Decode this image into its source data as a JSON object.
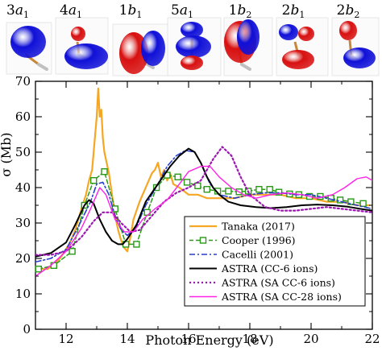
{
  "orbitals": [
    {
      "label": "3a",
      "sub": "1"
    },
    {
      "label": "4a",
      "sub": "1"
    },
    {
      "label": "1b",
      "sub": "1"
    },
    {
      "label": "5a",
      "sub": "1"
    },
    {
      "label": "1b",
      "sub": "2"
    },
    {
      "label": "2b",
      "sub": "1"
    },
    {
      "label": "2b",
      "sub": "2"
    }
  ],
  "orbital_colors": {
    "positive": "#1010d8",
    "negative": "#d81010",
    "bond": "#c8883a",
    "atom": "#c0c0c0"
  },
  "chart_data": {
    "type": "line",
    "xlabel": "Photon Energy (eV)",
    "ylabel": "σ (Mb)",
    "xlim": [
      11,
      22
    ],
    "ylim": [
      0,
      70
    ],
    "xticks": [
      12,
      14,
      16,
      18,
      20,
      22
    ],
    "yticks": [
      0,
      10,
      20,
      30,
      40,
      50,
      60,
      70
    ],
    "grid": false,
    "legend_position": "lower-center",
    "series": [
      {
        "name": "Tanaka (2017)",
        "color": "#f5a623",
        "style": "solid",
        "width": 2.2,
        "x": [
          11.0,
          11.4,
          11.8,
          12.1,
          12.3,
          12.5,
          12.65,
          12.75,
          12.85,
          12.95,
          13.0,
          13.05,
          13.1,
          13.15,
          13.2,
          13.25,
          13.3,
          13.4,
          13.5,
          13.6,
          13.7,
          13.8,
          13.9,
          14.0,
          14.1,
          14.2,
          14.4,
          14.6,
          14.8,
          14.9,
          15.0,
          15.1,
          15.2,
          15.3,
          15.4,
          15.5,
          15.7,
          16.0,
          16.3,
          16.6,
          17.0,
          17.5,
          18.0,
          18.5,
          19.0,
          19.5,
          20.0,
          20.5,
          21.0,
          21.5,
          21.9
        ],
        "y": [
          17,
          17,
          20,
          24,
          28,
          34,
          38,
          42,
          45,
          55,
          60,
          68,
          60,
          62,
          54,
          50,
          48,
          44,
          38,
          32,
          28,
          25,
          23,
          22,
          26,
          31,
          36,
          40,
          44,
          45,
          47,
          43,
          45,
          42,
          44,
          41,
          40,
          38,
          38,
          37,
          37,
          37,
          38,
          38,
          38,
          37,
          37,
          36,
          36,
          35,
          35
        ]
      },
      {
        "name": "Cooper (1996)",
        "color": "#2a9a18",
        "style": "dashed-square",
        "width": 1.5,
        "x": [
          11.1,
          11.6,
          12.2,
          12.6,
          12.9,
          13.25,
          13.6,
          13.95,
          14.3,
          14.65,
          14.95,
          15.3,
          15.65,
          15.95,
          16.3,
          16.6,
          16.95,
          17.3,
          17.65,
          17.95,
          18.3,
          18.65,
          18.95,
          19.3,
          19.6,
          19.95,
          20.3,
          20.65,
          20.95,
          21.3,
          21.7
        ],
        "y": [
          17,
          18,
          22,
          35,
          42,
          44.5,
          34,
          24,
          24,
          33,
          40,
          43.5,
          43,
          41.5,
          40.5,
          39.5,
          39,
          39,
          38.8,
          39,
          39.5,
          39.5,
          38.7,
          38.2,
          38,
          37.5,
          37.5,
          37,
          36.5,
          36,
          35.5
        ]
      },
      {
        "name": "Cacelli (2001)",
        "color": "#2a3fc8",
        "style": "dashdot",
        "width": 1.6,
        "x": [
          11.0,
          11.5,
          12.0,
          12.4,
          12.8,
          13.0,
          13.2,
          13.4,
          13.6,
          13.8,
          14.0,
          14.3,
          14.6,
          15.0,
          15.3,
          15.6,
          15.9,
          16.2,
          16.4,
          16.7,
          17.0,
          17.5,
          18.0,
          18.5,
          19.0,
          19.5,
          20.0,
          20.5,
          21.0,
          21.5,
          22.0
        ],
        "y": [
          19,
          20,
          22.5,
          29,
          36,
          41,
          41.5,
          38,
          32,
          28,
          26.5,
          29,
          35,
          41,
          46,
          49,
          50.5,
          50,
          47,
          41,
          38,
          37,
          38,
          38.5,
          38.5,
          38,
          38,
          37,
          36,
          35,
          34
        ]
      },
      {
        "name": "ASTRA (CC-6 ions)",
        "color": "#000000",
        "style": "solid",
        "width": 2.0,
        "x": [
          11.0,
          11.5,
          12.0,
          12.3,
          12.6,
          12.75,
          12.9,
          13.1,
          13.3,
          13.5,
          13.7,
          13.85,
          14.0,
          14.3,
          14.6,
          15.0,
          15.4,
          15.7,
          16.0,
          16.2,
          16.4,
          16.6,
          16.8,
          17.0,
          17.3,
          17.7,
          18.2,
          18.7,
          19.2,
          19.7,
          20.2,
          20.7,
          21.2,
          21.6,
          22.0
        ],
        "y": [
          20.5,
          21.5,
          24.5,
          29.5,
          35,
          36.5,
          35.5,
          31,
          27.5,
          25,
          24,
          24,
          25.5,
          29.5,
          36,
          41,
          46,
          49,
          51,
          50,
          47,
          43,
          40,
          38,
          36,
          35,
          34.5,
          34.2,
          34.5,
          35,
          35.2,
          35,
          34.6,
          34,
          33.5
        ]
      },
      {
        "name": "ASTRA (SA CC-6 ions)",
        "color": "#9b18b0",
        "style": "dotted",
        "width": 2.2,
        "x": [
          11.0,
          11.5,
          12.0,
          12.5,
          12.9,
          13.2,
          13.5,
          13.8,
          14.1,
          14.4,
          14.8,
          15.2,
          15.6,
          16.0,
          16.4,
          16.8,
          17.1,
          17.4,
          17.7,
          18.0,
          18.5,
          19.0,
          19.5,
          20.0,
          20.5,
          21.0,
          21.5,
          22.0
        ],
        "y": [
          21,
          21,
          22,
          26,
          30.5,
          33,
          33,
          30,
          27.5,
          28,
          32,
          36,
          38.5,
          40,
          42,
          48,
          51.5,
          49,
          43,
          38,
          34.5,
          33.5,
          33.5,
          34,
          34.5,
          34,
          33.5,
          33
        ]
      },
      {
        "name": "ASTRA (SA CC-28 ions)",
        "color": "#ff22e8",
        "style": "solid",
        "width": 1.4,
        "x": [
          11.0,
          11.5,
          12.0,
          12.5,
          12.8,
          13.1,
          13.3,
          13.6,
          13.9,
          14.2,
          14.5,
          14.9,
          15.3,
          15.7,
          16.0,
          16.4,
          16.7,
          17.0,
          17.4,
          17.8,
          18.2,
          18.7,
          19.2,
          19.7,
          20.2,
          20.7,
          21.1,
          21.5,
          21.8,
          22.0
        ],
        "y": [
          15,
          18,
          22,
          28.5,
          34,
          40,
          38,
          31,
          27.5,
          27.5,
          31,
          34,
          36.5,
          41,
          44.5,
          46,
          46,
          43,
          40,
          38,
          37,
          38,
          38.5,
          38,
          37,
          38,
          40,
          42.5,
          43,
          42
        ]
      }
    ]
  }
}
